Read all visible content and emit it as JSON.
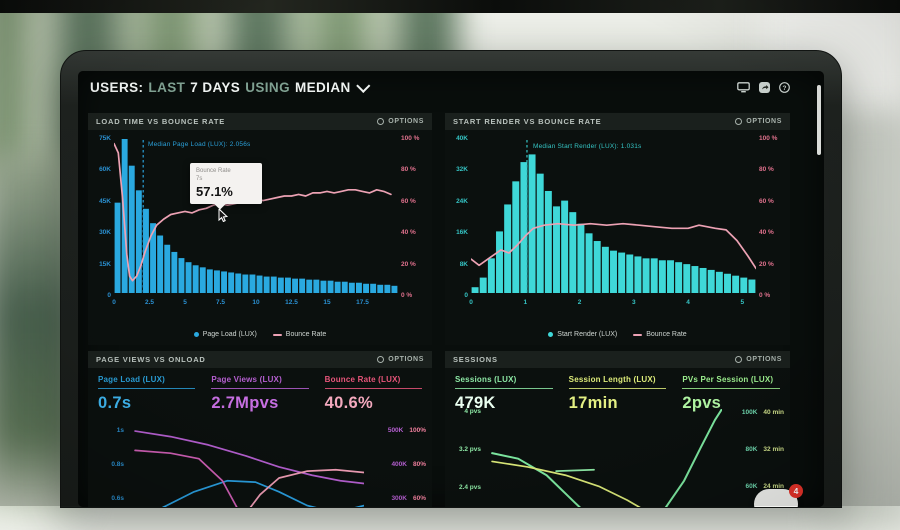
{
  "header": {
    "segments": [
      {
        "text": "USERS:",
        "muted": false
      },
      {
        "text": "LAST",
        "muted": true
      },
      {
        "text": "7 DAYS",
        "muted": false
      },
      {
        "text": "USING",
        "muted": true
      },
      {
        "text": "MEDIAN",
        "muted": false
      }
    ],
    "help_glyph": "?"
  },
  "panels": {
    "load_time": {
      "title": "LOAD TIME VS BOUNCE RATE",
      "options_label": "OPTIONS",
      "annotation": "Median Page Load (LUX): 2.056s",
      "tooltip": {
        "title": "Bounce Rate",
        "subtitle": "7s",
        "value": "57.1%"
      },
      "y_left": [
        "75K",
        "60K",
        "45K",
        "30K",
        "15K",
        "0"
      ],
      "y_right": [
        "100 %",
        "80 %",
        "60 %",
        "40 %",
        "20 %",
        "0 %"
      ],
      "x_ticks": [
        "0",
        "2.5",
        "5",
        "7.5",
        "10",
        "12.5",
        "15",
        "17.5"
      ],
      "legend": [
        {
          "label": "Page Load (LUX)",
          "color": "#2aa9e0",
          "marker": "dot"
        },
        {
          "label": "Bounce Rate",
          "color": "#eda2b4",
          "marker": "line"
        }
      ]
    },
    "start_render": {
      "title": "START RENDER VS BOUNCE RATE",
      "options_label": "OPTIONS",
      "annotation": "Median Start Render (LUX): 1.031s",
      "y_left": [
        "40K",
        "32K",
        "24K",
        "16K",
        "8K",
        "0"
      ],
      "y_right": [
        "100 %",
        "80 %",
        "60 %",
        "40 %",
        "20 %",
        "0 %"
      ],
      "x_ticks": [
        "0",
        "1",
        "2",
        "3",
        "4",
        "5"
      ],
      "legend": [
        {
          "label": "Start Render (LUX)",
          "color": "#3fd8d8",
          "marker": "dot"
        },
        {
          "label": "Bounce Rate",
          "color": "#eda2b4",
          "marker": "line"
        }
      ]
    },
    "page_views": {
      "title": "PAGE VIEWS VS ONLOAD",
      "options_label": "OPTIONS",
      "metrics": [
        {
          "label": "Page Load (LUX)",
          "value": "0.7s",
          "color": "#2a9fd8",
          "value_color": "#3fb6f0"
        },
        {
          "label": "Page Views (LUX)",
          "value": "2.7Mpvs",
          "color": "#b55fd0",
          "value_color": "#c76fe2"
        },
        {
          "label": "Bounce Rate (LUX)",
          "value": "40.6%",
          "color": "#e8557a",
          "value_color": "#f4a9be"
        }
      ],
      "y_left": [
        "1s",
        "0.8s",
        "0.6s"
      ],
      "y_right": [
        [
          "500K",
          "100%"
        ],
        [
          "400K",
          "80%"
        ],
        [
          "300K",
          "60%"
        ]
      ]
    },
    "sessions": {
      "title": "SESSIONS",
      "options_label": "OPTIONS",
      "metrics": [
        {
          "label": "Sessions (LUX)",
          "value": "479K",
          "color": "#8de8a5",
          "value_color": "#eafff0"
        },
        {
          "label": "Session Length (LUX)",
          "value": "17min",
          "color": "#dcea79",
          "value_color": "#e4f083"
        },
        {
          "label": "PVs Per Session (LUX)",
          "value": "2pvs",
          "color": "#9df08f",
          "value_color": "#b2f8a4"
        }
      ],
      "y_left": [
        "4 pvs",
        "3.2 pvs",
        "2.4 pvs"
      ],
      "y_right": [
        [
          "100K",
          "40 min"
        ],
        [
          "80K",
          "32 min"
        ],
        [
          "60K",
          "24 min"
        ]
      ]
    }
  },
  "chat": {
    "badge": "4"
  },
  "chart_data": [
    {
      "id": "load_time",
      "type": "bar+line",
      "title": "LOAD TIME VS BOUNCE RATE",
      "bar_color": "#2aa9e0",
      "line_color": "#eda2b4",
      "median_color": "#2a9fd8",
      "x_range": [
        0,
        20
      ],
      "x_step": 0.5,
      "y_left_max": 75,
      "y_left_unit": "K sessions",
      "median_x": 2.056,
      "bars_k": [
        44,
        75,
        62,
        50,
        41,
        34,
        28,
        23.5,
        20,
        17,
        15,
        13.5,
        12.5,
        11.5,
        11,
        10.5,
        10,
        9.5,
        9,
        9,
        8.5,
        8,
        8,
        7.5,
        7.5,
        7,
        7,
        6.5,
        6.5,
        6,
        6,
        5.5,
        5.5,
        5,
        5,
        4.5,
        4.5,
        4,
        4,
        3.5
      ],
      "line_pts": [
        [
          0,
          97
        ],
        [
          0.3,
          91
        ],
        [
          0.6,
          62
        ],
        [
          0.9,
          25
        ],
        [
          1.1,
          11
        ],
        [
          1.3,
          8
        ],
        [
          1.6,
          11
        ],
        [
          1.9,
          18
        ],
        [
          2.2,
          27
        ],
        [
          2.6,
          37
        ],
        [
          3,
          44
        ],
        [
          3.5,
          48
        ],
        [
          4,
          51
        ],
        [
          4.5,
          52
        ],
        [
          5,
          53
        ],
        [
          5.5,
          52
        ],
        [
          6,
          54
        ],
        [
          6.5,
          55
        ],
        [
          7,
          57.1
        ],
        [
          7.5,
          58
        ],
        [
          8,
          57
        ],
        [
          8.5,
          58
        ],
        [
          9,
          59
        ],
        [
          9.5,
          60
        ],
        [
          10,
          61
        ],
        [
          10.5,
          60
        ],
        [
          11,
          61
        ],
        [
          11.5,
          62
        ],
        [
          12,
          63
        ],
        [
          12.5,
          63
        ],
        [
          13,
          64
        ],
        [
          13.5,
          63
        ],
        [
          14,
          65
        ],
        [
          14.5,
          65
        ],
        [
          15,
          66
        ],
        [
          15.5,
          65
        ],
        [
          16,
          66
        ],
        [
          16.5,
          67
        ],
        [
          17,
          67
        ],
        [
          17.5,
          66
        ],
        [
          18,
          65
        ],
        [
          18.5,
          67
        ],
        [
          19,
          66
        ],
        [
          19.5,
          64
        ]
      ]
    },
    {
      "id": "start_render",
      "type": "bar+line",
      "title": "START RENDER VS BOUNCE RATE",
      "bar_color": "#3fd8d8",
      "line_color": "#eda2b4",
      "median_color": "#35c4c4",
      "x_range": [
        0,
        5.25
      ],
      "x_step": 0.15,
      "y_left_max": 40,
      "y_left_unit": "K sessions",
      "median_x": 1.031,
      "bars_k": [
        1.5,
        4,
        9,
        16,
        23,
        29,
        34,
        36,
        31,
        26.5,
        22.5,
        24,
        21,
        18,
        15.5,
        13.5,
        12,
        11,
        10.5,
        10,
        9.5,
        9,
        9,
        8.5,
        8.5,
        8,
        7.5,
        7,
        6.5,
        6,
        5.5,
        5,
        4.5,
        4,
        3.5
      ],
      "line_pts": [
        [
          0,
          22
        ],
        [
          0.15,
          18
        ],
        [
          0.35,
          23
        ],
        [
          0.55,
          28
        ],
        [
          0.7,
          26
        ],
        [
          0.85,
          31
        ],
        [
          1,
          37
        ],
        [
          1.15,
          42
        ],
        [
          1.35,
          44
        ],
        [
          1.6,
          45
        ],
        [
          1.9,
          44
        ],
        [
          2.2,
          45
        ],
        [
          2.5,
          44
        ],
        [
          2.8,
          45
        ],
        [
          3.1,
          44
        ],
        [
          3.4,
          43
        ],
        [
          3.7,
          42
        ],
        [
          4,
          42
        ],
        [
          4.2,
          44
        ],
        [
          4.5,
          42
        ],
        [
          4.7,
          41
        ],
        [
          4.9,
          34
        ],
        [
          5.1,
          24
        ],
        [
          5.25,
          16
        ]
      ]
    },
    {
      "id": "page_views_onload",
      "type": "line",
      "title": "PAGE VIEWS VS ONLOAD",
      "lines": [
        {
          "name": "page-views",
          "color": "#b55fd0",
          "points": [
            [
              3,
              16
            ],
            [
              18,
              20
            ],
            [
              34,
              26
            ],
            [
              50,
              34
            ],
            [
              64,
              42
            ],
            [
              78,
              48
            ],
            [
              90,
              52
            ],
            [
              100,
              54
            ]
          ]
        },
        {
          "name": "page-load",
          "color": "#2a9fe0",
          "points": [
            [
              3,
              78
            ],
            [
              14,
              72
            ],
            [
              28,
              60
            ],
            [
              42,
              52
            ],
            [
              54,
              53
            ],
            [
              64,
              60
            ],
            [
              76,
              70
            ],
            [
              88,
              75
            ],
            [
              100,
              70
            ]
          ]
        },
        {
          "name": "magenta-s",
          "color": "#cf5fb5",
          "points": [
            [
              3,
              30
            ],
            [
              18,
              32
            ],
            [
              30,
              36
            ],
            [
              40,
              52
            ],
            [
              47,
              74
            ],
            [
              54,
              88
            ],
            [
              66,
              92
            ],
            [
              82,
              93
            ],
            [
              100,
              94
            ]
          ]
        },
        {
          "name": "pink-s",
          "color": "#ef9db5",
          "points": [
            [
              3,
              95
            ],
            [
              22,
              93
            ],
            [
              38,
              90
            ],
            [
              48,
              80
            ],
            [
              56,
              62
            ],
            [
              64,
              50
            ],
            [
              76,
              45
            ],
            [
              88,
              44
            ],
            [
              100,
              46
            ]
          ]
        }
      ]
    },
    {
      "id": "sessions_chart",
      "type": "line",
      "title": "SESSIONS",
      "lines": [
        {
          "name": "sessions",
          "color": "#7de8a0",
          "width": 2,
          "points": [
            [
              3,
              32
            ],
            [
              14,
              36
            ],
            [
              26,
              48
            ],
            [
              38,
              68
            ],
            [
              48,
              84
            ],
            [
              58,
              90
            ],
            [
              68,
              86
            ],
            [
              76,
              72
            ],
            [
              84,
              52
            ],
            [
              91,
              28
            ],
            [
              97,
              8
            ],
            [
              100,
              0
            ]
          ]
        },
        {
          "name": "session-length",
          "color": "#dcea79",
          "points": [
            [
              3,
              38
            ],
            [
              18,
              42
            ],
            [
              34,
              48
            ],
            [
              48,
              56
            ],
            [
              60,
              66
            ],
            [
              72,
              78
            ],
            [
              84,
              88
            ],
            [
              100,
              96
            ]
          ]
        },
        {
          "name": "pvs-dash-1",
          "color": "#8de8a5",
          "points": [
            [
              30,
              45
            ],
            [
              46,
              44
            ]
          ]
        },
        {
          "name": "pvs-dash-2",
          "color": "#8de8a5",
          "points": [
            [
              56,
              92
            ],
            [
              76,
              91
            ]
          ]
        }
      ]
    }
  ]
}
